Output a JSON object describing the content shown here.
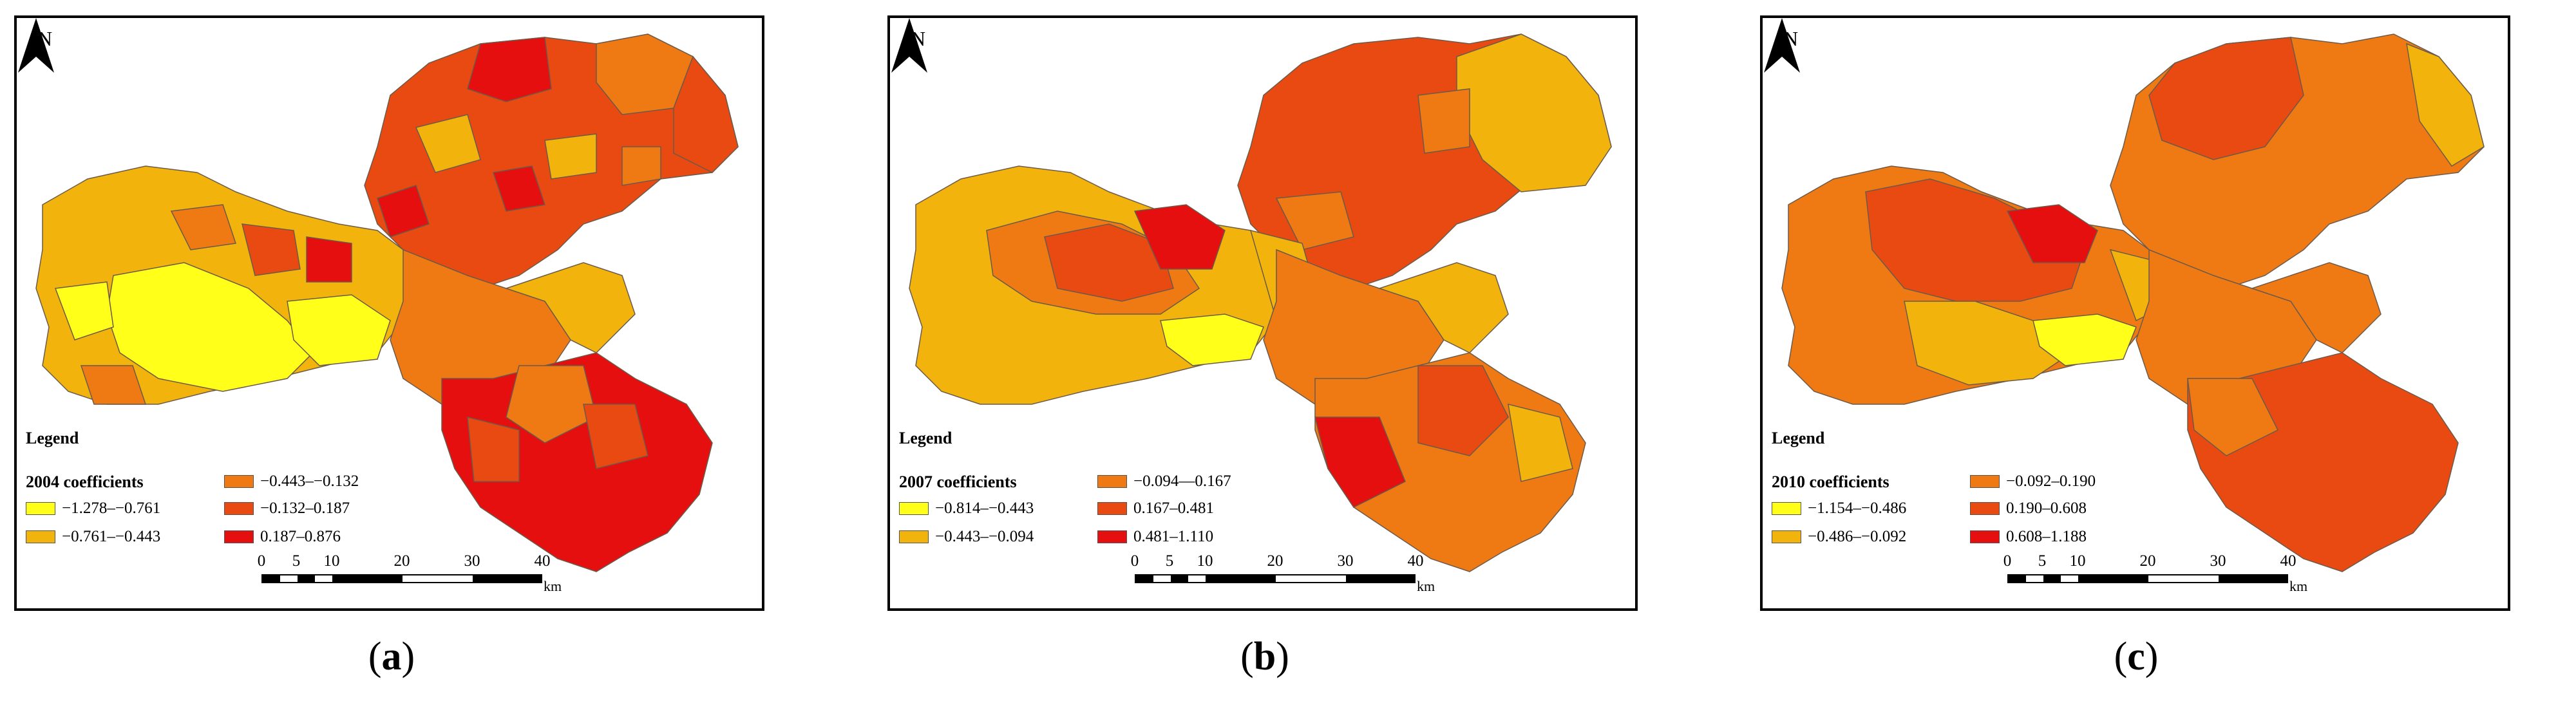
{
  "north_label": "N",
  "legend_label": "Legend",
  "scale": {
    "ticks": [
      "0",
      "5",
      "10",
      "20",
      "30",
      "40"
    ],
    "unit": "km"
  },
  "colors": {
    "class1": "#ffff1a",
    "class2": "#f2b40c",
    "class3": "#ef7a14",
    "class4": "#e84a12",
    "class5": "#e60f0f"
  },
  "panels": [
    {
      "caption_open": "(",
      "caption_letter": "a",
      "caption_close": ")",
      "legend_title": "2004 coefficients",
      "classes": [
        "−1.278–−0.761",
        "−0.761–−0.443",
        "−0.443–−0.132",
        "−0.132–0.187",
        "0.187–0.876"
      ]
    },
    {
      "caption_open": "(",
      "caption_letter": "b",
      "caption_close": ")",
      "legend_title": "2007 coefficients",
      "classes": [
        "−0.814–−0.443",
        "−0.443–−0.094",
        "−0.094—0.167",
        "0.167–0.481",
        "0.481–1.110"
      ]
    },
    {
      "caption_open": "(",
      "caption_letter": "c",
      "caption_close": ")",
      "legend_title": "2010 coefficients",
      "classes": [
        "−1.154–−0.486",
        "−0.486–−0.092",
        "−0.092–0.190",
        "0.190–0.608",
        "0.608–1.188"
      ]
    }
  ]
}
